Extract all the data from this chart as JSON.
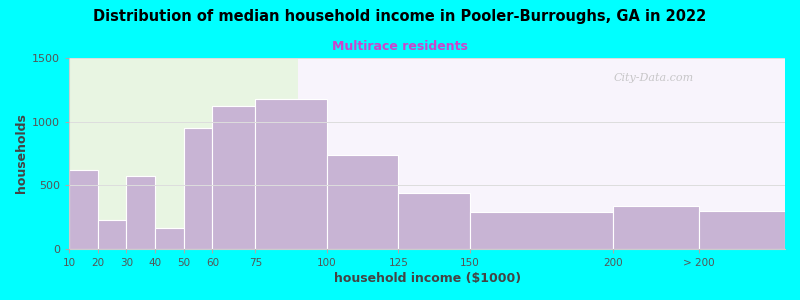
{
  "title": "Distribution of median household income in Pooler-Burroughs, GA in 2022",
  "subtitle": "Multirace residents",
  "xlabel": "household income ($1000)",
  "ylabel": "households",
  "bg_outer": "#00FFFF",
  "bar_color": "#c8b4d4",
  "bar_edge_color": "#ffffff",
  "title_color": "#000000",
  "subtitle_color": "#cc44cc",
  "axis_label_color": "#444444",
  "tick_label_color": "#555555",
  "watermark": "City-Data.com",
  "bin_lefts": [
    10,
    20,
    30,
    40,
    50,
    60,
    75,
    100,
    125,
    150,
    200,
    230
  ],
  "bin_rights": [
    20,
    30,
    40,
    50,
    60,
    75,
    100,
    125,
    150,
    200,
    230,
    260
  ],
  "tick_positions": [
    10,
    20,
    30,
    40,
    50,
    60,
    75,
    100,
    125,
    150,
    200,
    230
  ],
  "tick_labels": [
    "10",
    "20",
    "30",
    "40",
    "50",
    "60",
    "75",
    "100",
    "125",
    "150",
    "200",
    "> 200"
  ],
  "values": [
    620,
    230,
    575,
    165,
    950,
    1120,
    1175,
    740,
    435,
    290,
    335,
    300
  ],
  "ylim": [
    0,
    1500
  ],
  "yticks": [
    0,
    500,
    1000,
    1500
  ],
  "xlim": [
    10,
    260
  ],
  "figsize": [
    8.0,
    3.0
  ],
  "dpi": 100,
  "bg_left_color": "#e8f5e2",
  "bg_right_color": "#f8f4fc",
  "bg_split_x": 90
}
